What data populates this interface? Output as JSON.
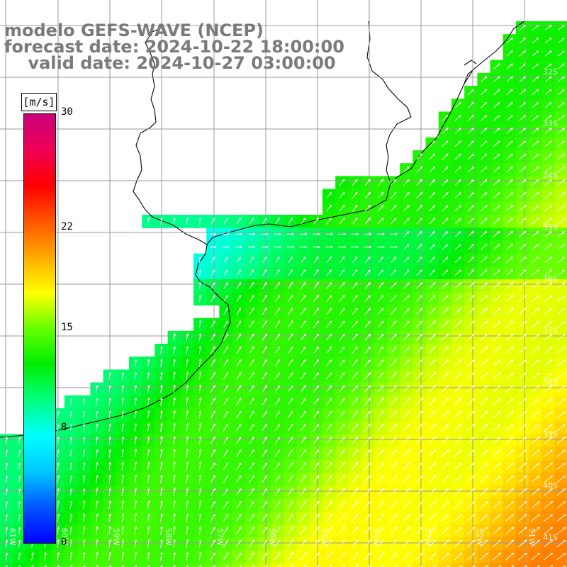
{
  "title": {
    "line1": "modelo GEFS-WAVE (NCEP)",
    "line2": "forecast date: 2024-10-22 18:00:00",
    "line3": "    valid date: 2024-10-27 03:00:00"
  },
  "colorbar": {
    "unit": "[m/s]",
    "min": 0,
    "max": 30,
    "ticks": [
      {
        "value": 30,
        "label": "30"
      },
      {
        "value": 22,
        "label": "22"
      },
      {
        "value": 15,
        "label": "15"
      },
      {
        "value": 8,
        "label": "8"
      },
      {
        "value": 0,
        "label": "0"
      }
    ],
    "colors": [
      "#0000ff",
      "#0055ff",
      "#00c8ff",
      "#00ffff",
      "#00ff80",
      "#00ee00",
      "#66ff00",
      "#ffff00",
      "#ffaa00",
      "#ff5500",
      "#ff0000",
      "#ee0055",
      "#c8007a"
    ]
  },
  "map": {
    "lat_labels": [
      "32S",
      "33S",
      "34S",
      "35S",
      "36S",
      "37S",
      "38S",
      "39S",
      "40S",
      "41S"
    ],
    "lon_labels": [
      "61W",
      "60W",
      "59W",
      "58W",
      "57W",
      "56W",
      "55W",
      "54W",
      "53W",
      "52W",
      "51W"
    ],
    "land_color": "#ffffff",
    "grid_color": "#999999",
    "arrow_color": "#ffffff"
  }
}
